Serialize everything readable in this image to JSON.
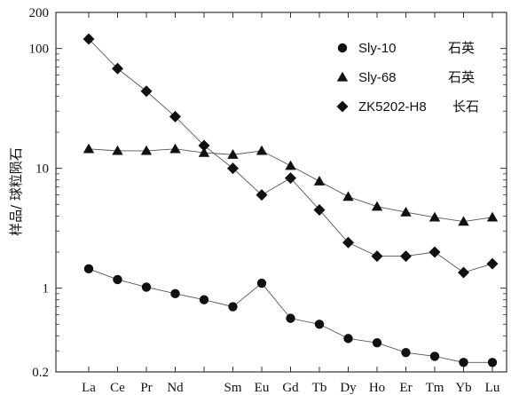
{
  "chart_data": {
    "type": "line",
    "title": "",
    "xlabel": "",
    "ylabel": "样品/ 球粒陨石",
    "y_scale": "log",
    "ylim": [
      0.2,
      200
    ],
    "y_ticks": [
      {
        "value": 0.2,
        "label": "0.2"
      },
      {
        "value": 1,
        "label": "1"
      },
      {
        "value": 10,
        "label": "10"
      },
      {
        "value": 100,
        "label": "100"
      },
      {
        "value": 200,
        "label": "200"
      }
    ],
    "categories": [
      "La",
      "Ce",
      "Pr",
      "Nd",
      "",
      "Sm",
      "Eu",
      "Gd",
      "Tb",
      "Dy",
      "Ho",
      "Er",
      "Tm",
      "Yb",
      "Lu"
    ],
    "legend_position": "top-right",
    "series": [
      {
        "name": "Sly-10",
        "mineral": "石英",
        "marker": "circle",
        "values": [
          1.45,
          1.18,
          1.02,
          0.9,
          0.8,
          0.7,
          1.1,
          0.56,
          0.5,
          0.38,
          0.35,
          0.29,
          0.27,
          0.24,
          0.24
        ]
      },
      {
        "name": "Sly-68",
        "mineral": "石英",
        "marker": "triangle",
        "values": [
          14.5,
          14.0,
          14.0,
          14.5,
          13.5,
          13.0,
          14.0,
          10.5,
          7.8,
          5.8,
          4.8,
          4.3,
          3.9,
          3.6,
          3.9
        ]
      },
      {
        "name": "ZK5202-H8",
        "mineral": "长石",
        "marker": "diamond",
        "values": [
          120,
          68,
          44,
          27,
          15.5,
          10.0,
          6.0,
          8.3,
          4.5,
          2.4,
          1.85,
          1.85,
          2.0,
          1.35,
          1.6
        ]
      }
    ]
  }
}
